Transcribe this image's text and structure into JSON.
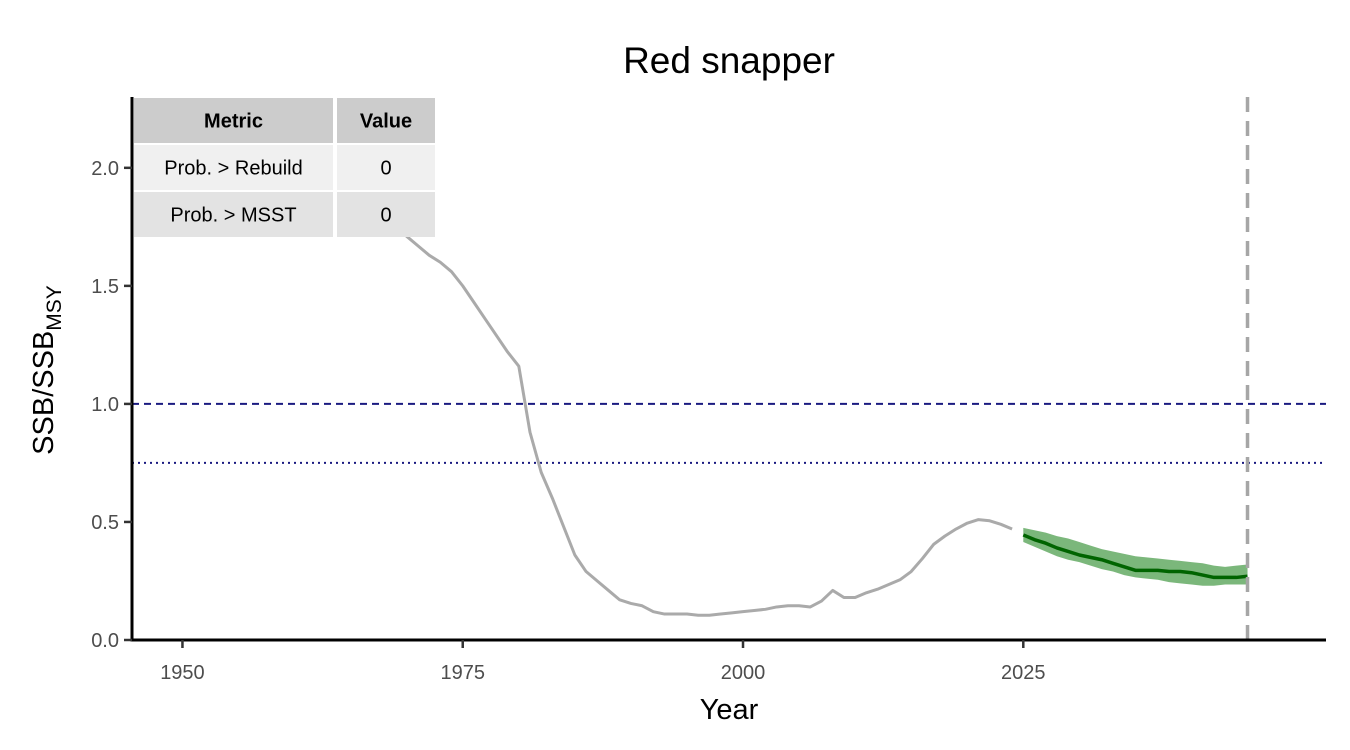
{
  "chart_data": {
    "type": "line",
    "title": "Red snapper",
    "xlabel": "Year",
    "ylabel": {
      "main": "SSB/SSB",
      "subscript": "MSY"
    },
    "xlim": [
      1945.5,
      2052
    ],
    "ylim": [
      0,
      2.3
    ],
    "x_ticks": [
      1950,
      1975,
      2000,
      2025
    ],
    "y_ticks": [
      0.0,
      0.5,
      1.0,
      1.5,
      2.0
    ],
    "y_tick_labels": [
      "0.0",
      "0.5",
      "1.0",
      "1.5",
      "2.0"
    ],
    "grid": false,
    "colors": {
      "historical": "#aaaaaa",
      "projection": "#006400",
      "projection_band": "#5aa55a",
      "reference_lines": "#1a1a80",
      "end_marker": "#a6a6a6"
    },
    "series": [
      {
        "role": "historical",
        "x": [
          1969,
          1970,
          1971,
          1972,
          1973,
          1974,
          1975,
          1976,
          1977,
          1978,
          1979,
          1980,
          1981,
          1982,
          1983,
          1984,
          1985,
          1986,
          1987,
          1988,
          1989,
          1990,
          1991,
          1992,
          1993,
          1994,
          1995,
          1996,
          1997,
          1998,
          1999,
          2000,
          2001,
          2002,
          2003,
          2004,
          2005,
          2006,
          2007,
          2008,
          2009,
          2010,
          2011,
          2012,
          2013,
          2014,
          2015,
          2016,
          2017,
          2018,
          2019,
          2020,
          2021,
          2022,
          2023,
          2024
        ],
        "y": [
          1.74,
          1.71,
          1.67,
          1.63,
          1.6,
          1.56,
          1.5,
          1.43,
          1.36,
          1.29,
          1.22,
          1.16,
          0.88,
          0.71,
          0.6,
          0.48,
          0.36,
          0.29,
          0.25,
          0.21,
          0.17,
          0.155,
          0.145,
          0.12,
          0.11,
          0.11,
          0.11,
          0.105,
          0.105,
          0.11,
          0.115,
          0.12,
          0.125,
          0.13,
          0.14,
          0.145,
          0.145,
          0.14,
          0.165,
          0.21,
          0.18,
          0.18,
          0.2,
          0.215,
          0.235,
          0.255,
          0.29,
          0.345,
          0.405,
          0.44,
          0.47,
          0.495,
          0.51,
          0.505,
          0.49,
          0.47
        ]
      },
      {
        "role": "projection",
        "x": [
          2025,
          2026,
          2027,
          2028,
          2029,
          2030,
          2031,
          2032,
          2033,
          2034,
          2035,
          2036,
          2037,
          2038,
          2039,
          2040,
          2041,
          2042,
          2043,
          2044,
          2045
        ],
        "y": [
          0.445,
          0.425,
          0.41,
          0.39,
          0.375,
          0.36,
          0.35,
          0.34,
          0.325,
          0.31,
          0.295,
          0.295,
          0.295,
          0.29,
          0.29,
          0.285,
          0.275,
          0.265,
          0.265,
          0.265,
          0.27
        ],
        "lower": [
          0.415,
          0.395,
          0.375,
          0.355,
          0.34,
          0.33,
          0.315,
          0.3,
          0.29,
          0.275,
          0.265,
          0.26,
          0.255,
          0.245,
          0.24,
          0.235,
          0.23,
          0.23,
          0.235,
          0.235,
          0.235
        ],
        "upper": [
          0.475,
          0.465,
          0.455,
          0.44,
          0.43,
          0.415,
          0.4,
          0.385,
          0.375,
          0.365,
          0.355,
          0.35,
          0.345,
          0.34,
          0.335,
          0.33,
          0.325,
          0.315,
          0.31,
          0.315,
          0.32
        ]
      }
    ],
    "reference_lines": [
      {
        "y": 1.0,
        "style": "dashed"
      },
      {
        "y": 0.75,
        "style": "dotted"
      }
    ],
    "vertical_line": {
      "x": 2045,
      "style": "dashed"
    },
    "table": {
      "headers": [
        "Metric",
        "Value"
      ],
      "rows": [
        [
          "Prob. > Rebuild",
          "0"
        ],
        [
          "Prob. > MSST",
          "0"
        ]
      ],
      "placement": "top-left"
    }
  }
}
